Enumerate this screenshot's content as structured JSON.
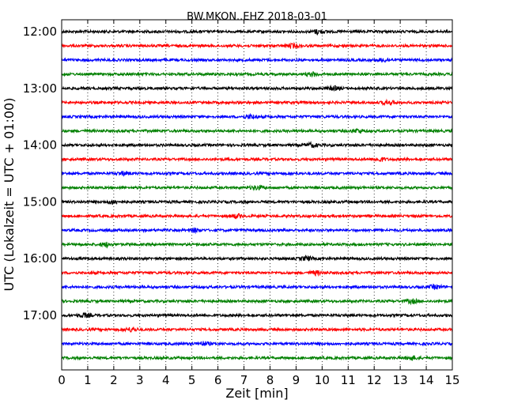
{
  "chart_data": {
    "type": "line",
    "title": "BW.MKON..EHZ 2018-03-01",
    "xlabel": "Zeit  [min]",
    "ylabel": "UTC (Lokalzeit = UTC + 01:00)",
    "xlim": [
      0,
      15
    ],
    "x_ticks": [
      "0",
      "1",
      "2",
      "3",
      "4",
      "5",
      "6",
      "7",
      "8",
      "9",
      "10",
      "11",
      "12",
      "13",
      "14",
      "15"
    ],
    "y_tick_labels": [
      "12:00",
      "13:00",
      "14:00",
      "15:00",
      "16:00",
      "17:00"
    ],
    "grid": "vertical-dotted",
    "trace_colors": [
      "#000000",
      "#ff0000",
      "#0000ff",
      "#008000"
    ],
    "trace_count": 24,
    "trace_interval_minutes": 15
  }
}
